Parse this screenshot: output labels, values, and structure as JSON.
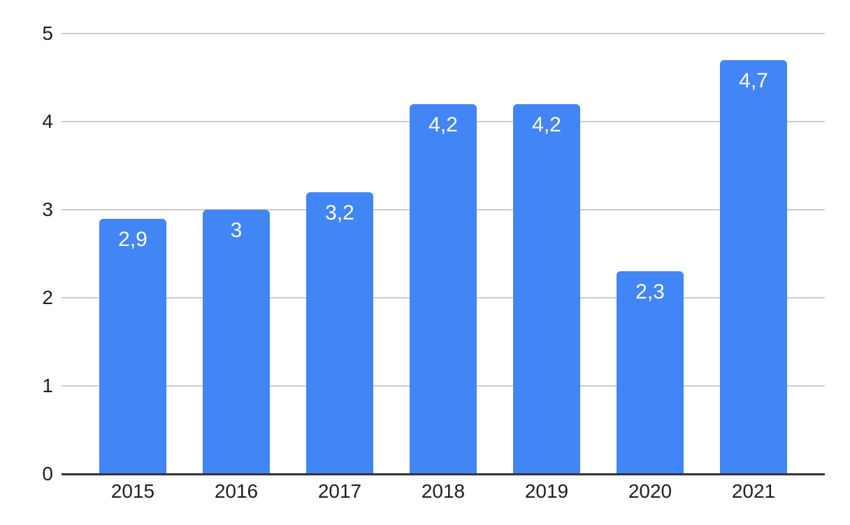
{
  "chart_data": {
    "type": "bar",
    "categories": [
      "2015",
      "2016",
      "2017",
      "2018",
      "2019",
      "2020",
      "2021"
    ],
    "values": [
      2.9,
      3,
      3.2,
      4.2,
      4.2,
      2.3,
      4.7
    ],
    "value_labels": [
      "2,9",
      "3",
      "3,2",
      "4,2",
      "4,2",
      "2,3",
      "4,7"
    ],
    "yticks": [
      "0",
      "1",
      "2",
      "3",
      "4",
      "5"
    ],
    "ylim": [
      0,
      5
    ],
    "xlabel": "",
    "ylabel": "",
    "grid": "horizontal",
    "legend_position": "none",
    "bar_color": "#4285f4",
    "value_label_color": "#ffffff",
    "gridline_color": "#cccccc",
    "axis_line_color": "#333333",
    "tick_label_color": "#1f1f1f",
    "background_color": "#ffffff"
  }
}
